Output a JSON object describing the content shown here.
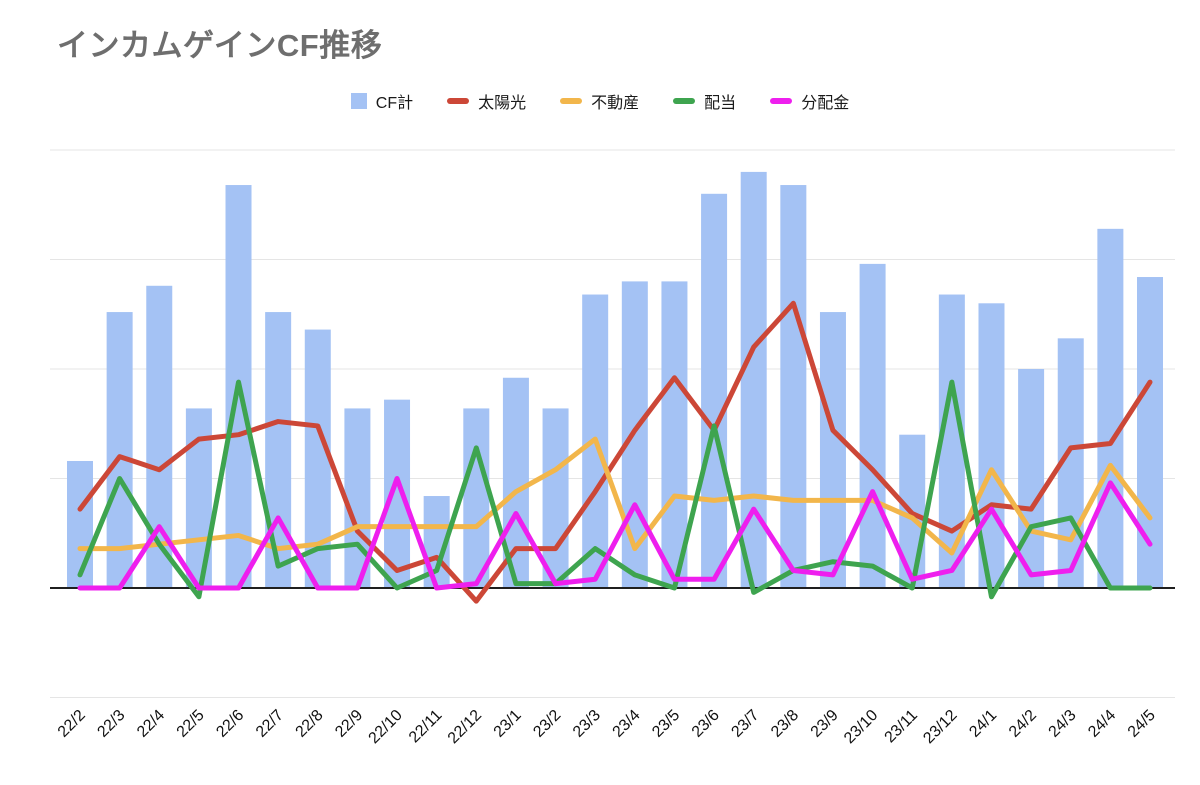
{
  "title": "インカムゲインCF推移",
  "chart_data": {
    "type": "combo",
    "title": "インカムゲインCF推移",
    "xlabel": "",
    "ylabel": "",
    "ylim": [
      -25,
      100
    ],
    "grid": "horizontal",
    "legend_position": "top",
    "y_axis_labels_visible": false,
    "categories": [
      "22/2",
      "22/3",
      "22/4",
      "22/5",
      "22/6",
      "22/7",
      "22/8",
      "22/9",
      "22/10",
      "22/11",
      "22/12",
      "23/1",
      "23/2",
      "23/3",
      "23/4",
      "23/5",
      "23/6",
      "23/7",
      "23/8",
      "23/9",
      "23/10",
      "23/11",
      "23/12",
      "24/1",
      "24/2",
      "24/3",
      "24/4",
      "24/5"
    ],
    "series": [
      {
        "name": "CF計",
        "key": "cf-total",
        "type": "bar",
        "color": "#a4c2f4",
        "values": [
          29,
          63,
          69,
          41,
          92,
          63,
          59,
          41,
          43,
          21,
          41,
          48,
          41,
          67,
          70,
          70,
          90,
          95,
          92,
          63,
          74,
          35,
          67,
          65,
          50,
          57,
          82,
          71
        ]
      },
      {
        "name": "太陽光",
        "key": "solar",
        "type": "line",
        "color": "#cc4737",
        "values": [
          18,
          30,
          27,
          34,
          35,
          38,
          37,
          13,
          4,
          7,
          -3,
          9,
          9,
          22,
          36,
          48,
          36,
          55,
          65,
          36,
          27,
          17,
          13,
          19,
          18,
          32,
          33,
          47
        ]
      },
      {
        "name": "不動産",
        "key": "real-estate",
        "type": "line",
        "color": "#f2b64b",
        "values": [
          9,
          9,
          10,
          11,
          12,
          9,
          10,
          14,
          14,
          14,
          14,
          22,
          27,
          34,
          9,
          21,
          20,
          21,
          20,
          20,
          20,
          16,
          8,
          27,
          13,
          11,
          28,
          16
        ]
      },
      {
        "name": "配当",
        "key": "dividend",
        "type": "line",
        "color": "#3ea44f",
        "values": [
          3,
          25,
          10,
          -2,
          47,
          5,
          9,
          10,
          0,
          4,
          32,
          1,
          1,
          9,
          3,
          0,
          37,
          -1,
          4,
          6,
          5,
          0,
          47,
          -2,
          14,
          16,
          0,
          0
        ]
      },
      {
        "name": "分配金",
        "key": "distribution",
        "type": "line",
        "color": "#ee1fee",
        "values": [
          0,
          0,
          14,
          0,
          0,
          16,
          0,
          0,
          25,
          0,
          1,
          17,
          1,
          2,
          19,
          2,
          2,
          18,
          4,
          3,
          22,
          2,
          4,
          18,
          3,
          4,
          24,
          10
        ]
      }
    ]
  },
  "colors": {
    "gridline": "#e5e5e5",
    "zero_axis": "#1f1f1f",
    "title_text": "#6e6e6e",
    "axis_label_text": "#111111"
  }
}
